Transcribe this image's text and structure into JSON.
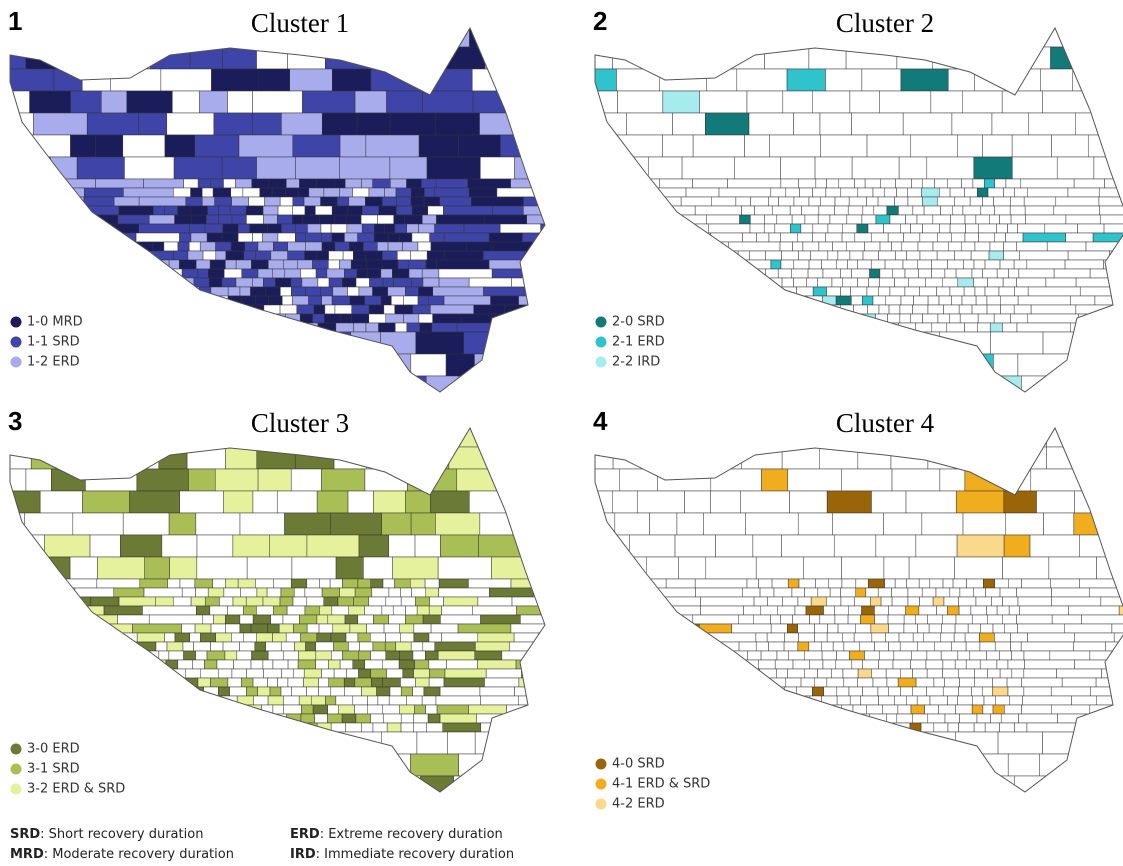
{
  "panels": [
    {
      "number": "1",
      "title": "Cluster 1",
      "legend": [
        {
          "label": "1-0 MRD",
          "color": "#1b1d5a"
        },
        {
          "label": "1-1 SRD",
          "color": "#3e44a8"
        },
        {
          "label": "1-2 ERD",
          "color": "#a9acec"
        }
      ]
    },
    {
      "number": "2",
      "title": "Cluster 2",
      "legend": [
        {
          "label": "2-0 SRD",
          "color": "#127a78"
        },
        {
          "label": "2-1 ERD",
          "color": "#2fc3cc"
        },
        {
          "label": "2-2 IRD",
          "color": "#a6ecee"
        }
      ]
    },
    {
      "number": "3",
      "title": "Cluster 3",
      "legend": [
        {
          "label": "3-0 ERD",
          "color": "#6b7a35"
        },
        {
          "label": "3-1 SRD",
          "color": "#a9bf56"
        },
        {
          "label": "3-2 ERD & SRD",
          "color": "#e6f29b"
        }
      ]
    },
    {
      "number": "4",
      "title": "Cluster 4",
      "legend": [
        {
          "label": "4-0 SRD",
          "color": "#9a6508"
        },
        {
          "label": "4-1 ERD & SRD",
          "color": "#f0ae1e"
        },
        {
          "label": "4-2 ERD",
          "color": "#fbd98a"
        }
      ]
    }
  ],
  "definitions": [
    {
      "term": "SRD",
      "text": ": Short recovery duration"
    },
    {
      "term": "ERD",
      "text": ": Extreme recovery duration"
    },
    {
      "term": "MRD",
      "text": ": Moderate recovery duration"
    },
    {
      "term": "IRD",
      "text": ":  Immediate recovery duration"
    }
  ]
}
